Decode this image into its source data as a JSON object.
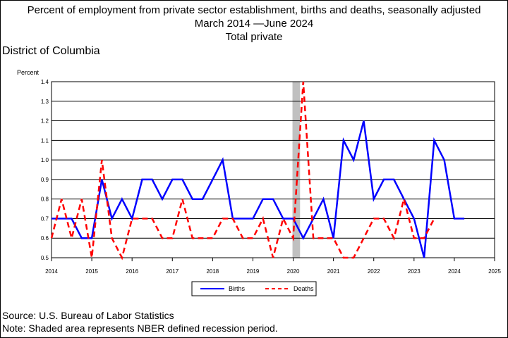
{
  "title": {
    "line1": "Percent of employment from private sector establishment, births and deaths, seasonally adjusted",
    "line2_start": "March 2014",
    "line2_end": "June 2024",
    "line3": "Total private"
  },
  "region": "District of Columbia",
  "footer": {
    "source": "Source: U.S. Bureau of Labor Statistics",
    "note": "Note: Shaded area represents NBER defined recession period."
  },
  "chart_data": {
    "type": "line",
    "ylabel": "Percent",
    "xlim": [
      2014.0,
      2025.0
    ],
    "ylim": [
      0.5,
      1.4
    ],
    "y_ticks": [
      "0.5",
      "0.6",
      "0.7",
      "0.8",
      "0.9",
      "1.0",
      "1.1",
      "1.2",
      "1.3",
      "1.4"
    ],
    "x_ticks": [
      "2014",
      "2015",
      "2016",
      "2017",
      "2018",
      "2019",
      "2020",
      "2021",
      "2022",
      "2023",
      "2024",
      "2025"
    ],
    "grid": true,
    "recession": {
      "start": 2020.0,
      "end": 2020.17
    },
    "legend_position": "bottom-center",
    "series": [
      {
        "name": "Births",
        "color": "#0000ff",
        "style": "solid",
        "x": [
          2014.0,
          2014.25,
          2014.5,
          2014.75,
          2015.0,
          2015.25,
          2015.5,
          2015.75,
          2016.0,
          2016.25,
          2016.5,
          2016.75,
          2017.0,
          2017.25,
          2017.5,
          2017.75,
          2018.0,
          2018.25,
          2018.5,
          2018.75,
          2019.0,
          2019.25,
          2019.5,
          2019.75,
          2020.0,
          2020.25,
          2020.5,
          2020.75,
          2021.0,
          2021.25,
          2021.5,
          2021.75,
          2022.0,
          2022.25,
          2022.5,
          2022.75,
          2023.0,
          2023.25,
          2023.5,
          2023.75,
          2024.0,
          2024.25
        ],
        "values": [
          0.7,
          0.7,
          0.7,
          0.6,
          0.6,
          0.9,
          0.7,
          0.8,
          0.7,
          0.9,
          0.9,
          0.8,
          0.9,
          0.9,
          0.8,
          0.8,
          0.9,
          1.0,
          0.7,
          0.7,
          0.7,
          0.8,
          0.8,
          0.7,
          0.7,
          0.6,
          0.7,
          0.8,
          0.6,
          1.1,
          1.0,
          1.2,
          0.8,
          0.9,
          0.9,
          0.8,
          0.7,
          0.5,
          1.1,
          1.0,
          0.7,
          0.7
        ]
      },
      {
        "name": "Deaths",
        "color": "#ff0000",
        "style": "dashed",
        "x": [
          2014.0,
          2014.25,
          2014.5,
          2014.75,
          2015.0,
          2015.25,
          2015.5,
          2015.75,
          2016.0,
          2016.25,
          2016.5,
          2016.75,
          2017.0,
          2017.25,
          2017.5,
          2017.75,
          2018.0,
          2018.25,
          2018.5,
          2018.75,
          2019.0,
          2019.25,
          2019.5,
          2019.75,
          2020.0,
          2020.25,
          2020.5,
          2020.75,
          2021.0,
          2021.25,
          2021.5,
          2021.75,
          2022.0,
          2022.25,
          2022.5,
          2022.75,
          2023.0,
          2023.25,
          2023.5
        ],
        "values": [
          0.6,
          0.8,
          0.6,
          0.8,
          0.5,
          1.0,
          0.6,
          0.5,
          0.7,
          0.7,
          0.7,
          0.6,
          0.6,
          0.8,
          0.6,
          0.6,
          0.6,
          0.7,
          0.7,
          0.6,
          0.6,
          0.7,
          0.5,
          0.7,
          0.6,
          1.4,
          0.6,
          0.6,
          0.6,
          0.5,
          0.5,
          0.6,
          0.7,
          0.7,
          0.6,
          0.8,
          0.6,
          0.6,
          0.7
        ]
      }
    ]
  }
}
